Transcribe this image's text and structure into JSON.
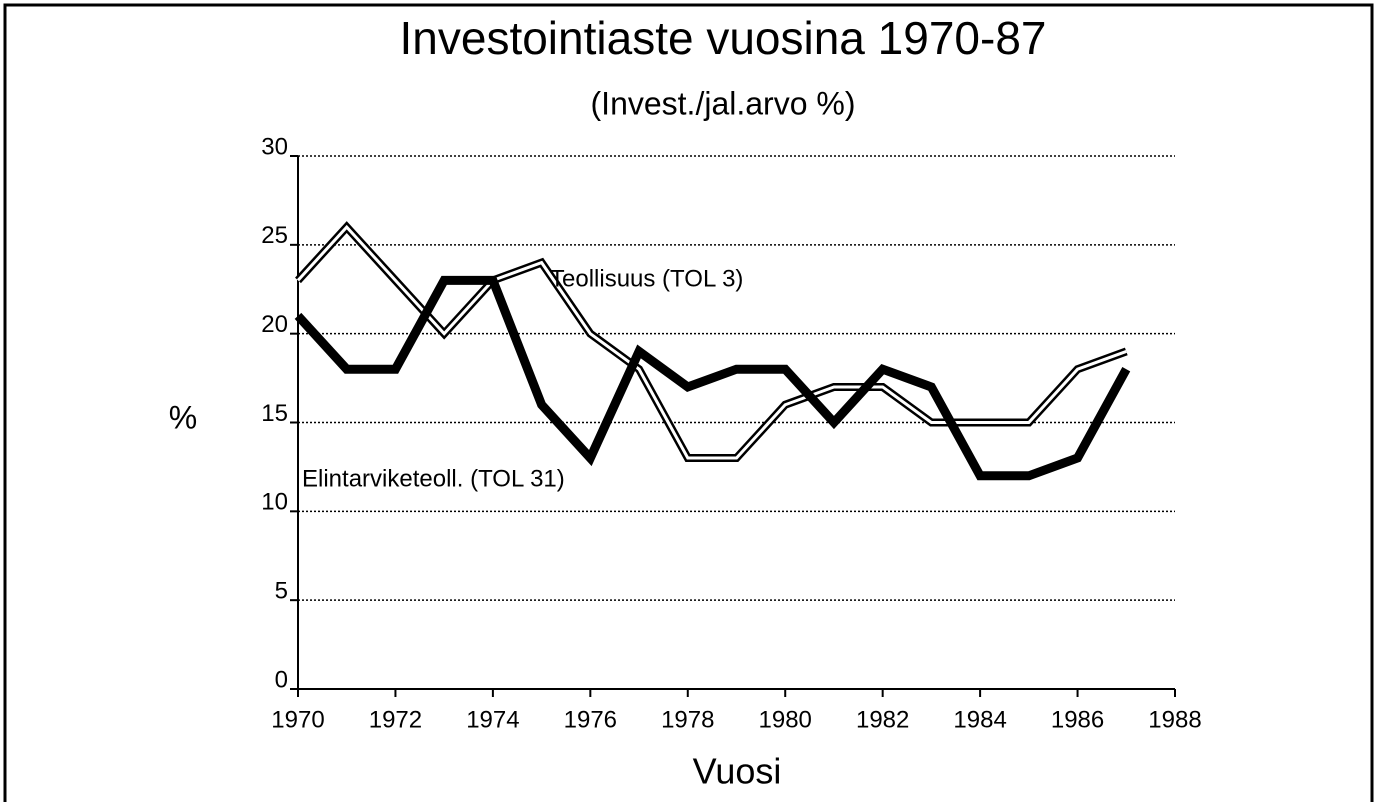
{
  "chart_data": {
    "type": "line",
    "title": "Investointiaste vuosina 1970-87",
    "subtitle": "(Invest./jal.arvo %)",
    "xlabel": "Vuosi",
    "ylabel": "%",
    "x": [
      1970,
      1971,
      1972,
      1973,
      1974,
      1975,
      1976,
      1977,
      1978,
      1979,
      1980,
      1981,
      1982,
      1983,
      1984,
      1985,
      1986,
      1987
    ],
    "series": [
      {
        "name": "Teollisuus (TOL 3)",
        "color": "#000000",
        "style": "double",
        "values": [
          23,
          26,
          23,
          20,
          23,
          24,
          20,
          18,
          13,
          13,
          16,
          17,
          17,
          15,
          15,
          15,
          18,
          19
        ]
      },
      {
        "name": "Elintarviketeoll. (TOL 31)",
        "color": "#000000",
        "style": "solid",
        "values": [
          21,
          18,
          18,
          23,
          23,
          16,
          13,
          19,
          17,
          18,
          18,
          15,
          18,
          17,
          12,
          12,
          13,
          18
        ]
      }
    ],
    "xlim": [
      1970,
      1988
    ],
    "xticks": [
      1970,
      1972,
      1974,
      1976,
      1978,
      1980,
      1982,
      1984,
      1986,
      1988
    ],
    "ylim": [
      0,
      30
    ],
    "yticks": [
      0,
      5,
      10,
      15,
      20,
      25,
      30
    ],
    "grid": true
  }
}
